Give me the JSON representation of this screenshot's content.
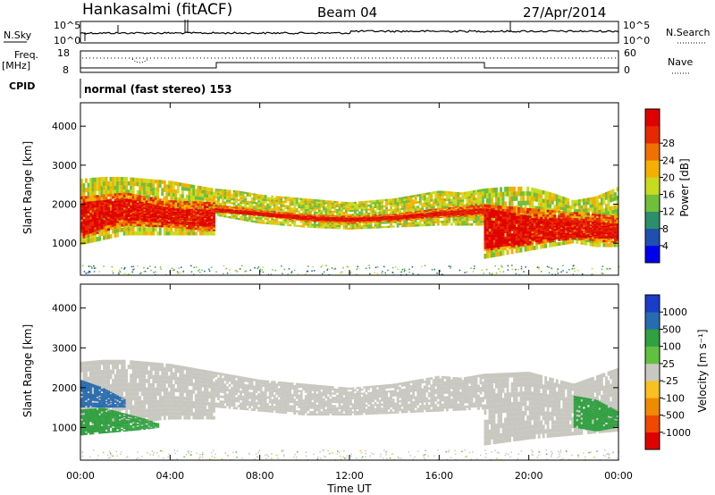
{
  "header": {
    "station": "Hankasalmi (fitACF)",
    "beam": "Beam 04",
    "date": "27/Apr/2014"
  },
  "panels": {
    "nsky": {
      "label": "N.Sky",
      "right_label": "N.Search",
      "top_tick": "10^5",
      "bottom_tick": "10^0"
    },
    "freq": {
      "label_line1": "Freq.",
      "label_line2": "[MHz]",
      "right_label": "Nave",
      "left_top": "18",
      "left_bottom": "8",
      "right_top": "60",
      "right_bottom": "0"
    },
    "cpid": {
      "label": "CPID",
      "text": "normal (fast stereo) 153"
    }
  },
  "colors": {
    "power": [
      "#0000ee",
      "#1f4fb0",
      "#2a8f6a",
      "#6fbf3a",
      "#c8dc1e",
      "#f4b000",
      "#f07000",
      "#e82800",
      "#e00000"
    ],
    "velocity": [
      "#e00000",
      "#f04800",
      "#f08a00",
      "#f8c020",
      "#c8c8c0",
      "#60c040",
      "#30a040",
      "#286cb0",
      "#1a3cc8"
    ]
  },
  "chart_data": [
    {
      "type": "heatmap",
      "name": "power",
      "ylabel": "Slant Range [km]",
      "ylim": [
        180,
        4600
      ],
      "yticks": [
        1000,
        2000,
        3000,
        4000
      ],
      "xlim": [
        0,
        24
      ],
      "colorbar": {
        "label": "Power [dB]",
        "min": 0,
        "max": 32,
        "ticks": [
          "4",
          "8",
          "12",
          "16",
          "20",
          "24",
          "28"
        ]
      },
      "layers": [
        {
          "value": 16,
          "points": [
            [
              0,
              2650
            ],
            [
              1,
              2700
            ],
            [
              2,
              2700
            ],
            [
              3,
              2650
            ],
            [
              4,
              2600
            ],
            [
              5,
              2500
            ],
            [
              6,
              2400
            ],
            [
              7,
              2350
            ],
            [
              8,
              2250
            ],
            [
              10,
              2150
            ],
            [
              12,
              2050
            ],
            [
              14,
              2150
            ],
            [
              16,
              2350
            ],
            [
              17,
              2300
            ],
            [
              18,
              2400
            ],
            [
              19,
              2450
            ],
            [
              20,
              2450
            ],
            [
              21,
              2300
            ],
            [
              22,
              2100
            ],
            [
              23,
              2200
            ],
            [
              24,
              2450
            ]
          ],
          "bottom": [
            [
              0,
              950
            ],
            [
              2,
              1200
            ],
            [
              4,
              1200
            ],
            [
              6,
              1200
            ],
            [
              6.05,
              1700
            ],
            [
              8,
              1500
            ],
            [
              10,
              1400
            ],
            [
              12,
              1350
            ],
            [
              14,
              1400
            ],
            [
              16,
              1450
            ],
            [
              18,
              1450
            ],
            [
              18.05,
              600
            ],
            [
              20,
              800
            ],
            [
              22,
              1000
            ],
            [
              23,
              900
            ],
            [
              24,
              900
            ]
          ]
        },
        {
          "value": 24,
          "points": [
            [
              0,
              2200
            ],
            [
              2,
              2300
            ],
            [
              4,
              2100
            ],
            [
              6,
              2050
            ],
            [
              6.05,
              2000
            ],
            [
              8,
              1850
            ],
            [
              10,
              1750
            ],
            [
              12,
              1700
            ],
            [
              14,
              1750
            ],
            [
              16,
              1900
            ],
            [
              18,
              2000
            ],
            [
              20,
              1900
            ],
            [
              22,
              1800
            ],
            [
              24,
              1700
            ]
          ],
          "bottom": [
            [
              0,
              1100
            ],
            [
              2,
              1450
            ],
            [
              4,
              1400
            ],
            [
              6,
              1300
            ],
            [
              6.05,
              1850
            ],
            [
              8,
              1700
            ],
            [
              10,
              1550
            ],
            [
              12,
              1500
            ],
            [
              14,
              1550
            ],
            [
              16,
              1650
            ],
            [
              18,
              1700
            ],
            [
              18.05,
              800
            ],
            [
              20,
              950
            ],
            [
              22,
              1100
            ],
            [
              24,
              1000
            ]
          ]
        },
        {
          "value": 30,
          "points": [
            [
              0,
              2050
            ],
            [
              2,
              2150
            ],
            [
              4,
              1900
            ],
            [
              6,
              1850
            ],
            [
              6.05,
              1900
            ],
            [
              8,
              1800
            ],
            [
              10,
              1700
            ],
            [
              12,
              1650
            ],
            [
              14,
              1700
            ],
            [
              16,
              1800
            ],
            [
              18,
              1900
            ],
            [
              20,
              1700
            ],
            [
              22,
              1600
            ],
            [
              24,
              1500
            ]
          ],
          "bottom": [
            [
              0,
              1150
            ],
            [
              2,
              1600
            ],
            [
              4,
              1500
            ],
            [
              6,
              1400
            ],
            [
              6.05,
              1800
            ],
            [
              8,
              1700
            ],
            [
              10,
              1600
            ],
            [
              12,
              1550
            ],
            [
              14,
              1600
            ],
            [
              16,
              1700
            ],
            [
              18,
              1750
            ],
            [
              18.05,
              850
            ],
            [
              20,
              1000
            ],
            [
              22,
              1150
            ],
            [
              24,
              1100
            ]
          ]
        }
      ]
    },
    {
      "type": "heatmap",
      "name": "velocity",
      "ylabel": "Slant Range [km]",
      "ylim": [
        180,
        4600
      ],
      "yticks": [
        1000,
        2000,
        3000,
        4000
      ],
      "xlim": [
        0,
        24
      ],
      "xticks": [
        "00:00",
        "04:00",
        "08:00",
        "12:00",
        "16:00",
        "20:00",
        "00:00"
      ],
      "xlabel": "Time UT",
      "colorbar": {
        "label": "Velocity [m s⁻¹]",
        "ticks": [
          "-1000",
          "-500",
          "-100",
          "-25",
          "25",
          "100",
          "500",
          "1000"
        ]
      },
      "layers": [
        {
          "value": 0,
          "points": [
            [
              0,
              2650
            ],
            [
              1,
              2700
            ],
            [
              2,
              2700
            ],
            [
              3,
              2650
            ],
            [
              4,
              2600
            ],
            [
              5,
              2500
            ],
            [
              6,
              2400
            ],
            [
              7,
              2300
            ],
            [
              8,
              2200
            ],
            [
              10,
              2100
            ],
            [
              12,
              2000
            ],
            [
              14,
              2100
            ],
            [
              16,
              2300
            ],
            [
              17,
              2250
            ],
            [
              18,
              2350
            ],
            [
              20,
              2400
            ],
            [
              22,
              2100
            ],
            [
              24,
              2500
            ]
          ],
          "bottom": [
            [
              0,
              800
            ],
            [
              2,
              1100
            ],
            [
              4,
              1200
            ],
            [
              6,
              1200
            ],
            [
              6.05,
              1500
            ],
            [
              8,
              1400
            ],
            [
              10,
              1300
            ],
            [
              12,
              1300
            ],
            [
              14,
              1350
            ],
            [
              16,
              1400
            ],
            [
              18,
              1450
            ],
            [
              18.05,
              550
            ],
            [
              20,
              700
            ],
            [
              22,
              800
            ],
            [
              24,
              900
            ]
          ]
        },
        {
          "value": 120,
          "points": [
            [
              0,
              1450
            ],
            [
              1,
              1500
            ],
            [
              2,
              1350
            ],
            [
              3,
              1200
            ],
            [
              3.5,
              1100
            ]
          ],
          "bottom": [
            [
              0,
              800
            ],
            [
              1,
              850
            ],
            [
              2,
              900
            ],
            [
              3,
              950
            ],
            [
              3.5,
              1000
            ]
          ]
        },
        {
          "value": 700,
          "points": [
            [
              0,
              2200
            ],
            [
              1,
              2000
            ],
            [
              2,
              1700
            ]
          ],
          "bottom": [
            [
              0,
              1500
            ],
            [
              1,
              1500
            ],
            [
              2,
              1500
            ]
          ]
        },
        {
          "value": 120,
          "points": [
            [
              22,
              1800
            ],
            [
              23,
              1700
            ],
            [
              24,
              1400
            ]
          ],
          "bottom": [
            [
              22,
              1000
            ],
            [
              23,
              900
            ],
            [
              24,
              1000
            ]
          ]
        }
      ]
    }
  ]
}
